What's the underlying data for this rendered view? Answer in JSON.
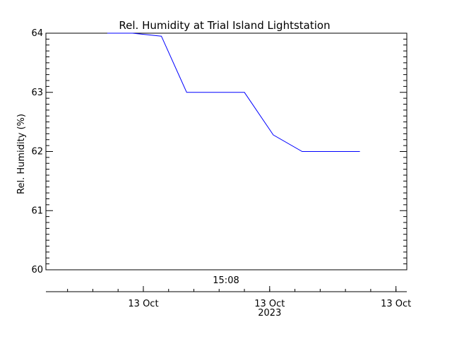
{
  "chart_data": {
    "type": "line",
    "title": "Rel. Humidity at Trial Island Lightstation",
    "ylabel": "Rel. Humidity (%)",
    "ylim": [
      60,
      64
    ],
    "yticks": [
      "60",
      "61",
      "62",
      "63",
      "64"
    ],
    "x_top_label": "15:08",
    "x_ticks": [
      {
        "label": "13 Oct",
        "sublabel": ""
      },
      {
        "label": "13 Oct",
        "sublabel": "2023"
      },
      {
        "label": "13 Oct",
        "sublabel": ""
      }
    ],
    "series": [
      {
        "color": "#0000ff",
        "x": [
          0.0,
          0.7,
          1.5,
          2.2,
          3.0,
          3.8,
          4.6,
          5.4,
          6.0,
          7.0
        ],
        "y": [
          64.0,
          64.0,
          63.95,
          63.0,
          63.0,
          63.0,
          62.28,
          62.0,
          62.0,
          62.0
        ]
      }
    ],
    "x_range": [
      -1.7,
      8.3
    ],
    "x_tick_values": [
      1.0,
      4.5,
      8.0
    ]
  }
}
